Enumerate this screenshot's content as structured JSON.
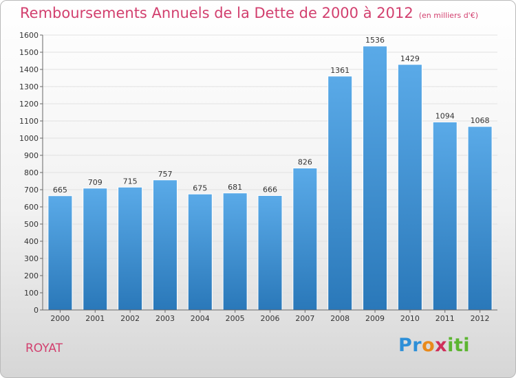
{
  "chart_data": {
    "type": "bar",
    "title": "Remboursements Annuels de la Dette de 2000 à 2012",
    "unit": "(en milliers d'€)",
    "categories": [
      "2000",
      "2001",
      "2002",
      "2003",
      "2004",
      "2005",
      "2006",
      "2007",
      "2008",
      "2009",
      "2010",
      "2011",
      "2012"
    ],
    "values": [
      665,
      709,
      715,
      757,
      675,
      681,
      666,
      826,
      1361,
      1536,
      1429,
      1094,
      1068
    ],
    "ylim": [
      0,
      1600
    ],
    "ytick_step": 100,
    "grid": true,
    "bar_color_top": "#5aaae8",
    "bar_color_bottom": "#2a78b9"
  },
  "footer": {
    "town": "ROYAT",
    "logo": [
      "Pr",
      "o",
      "x",
      "iti"
    ]
  }
}
